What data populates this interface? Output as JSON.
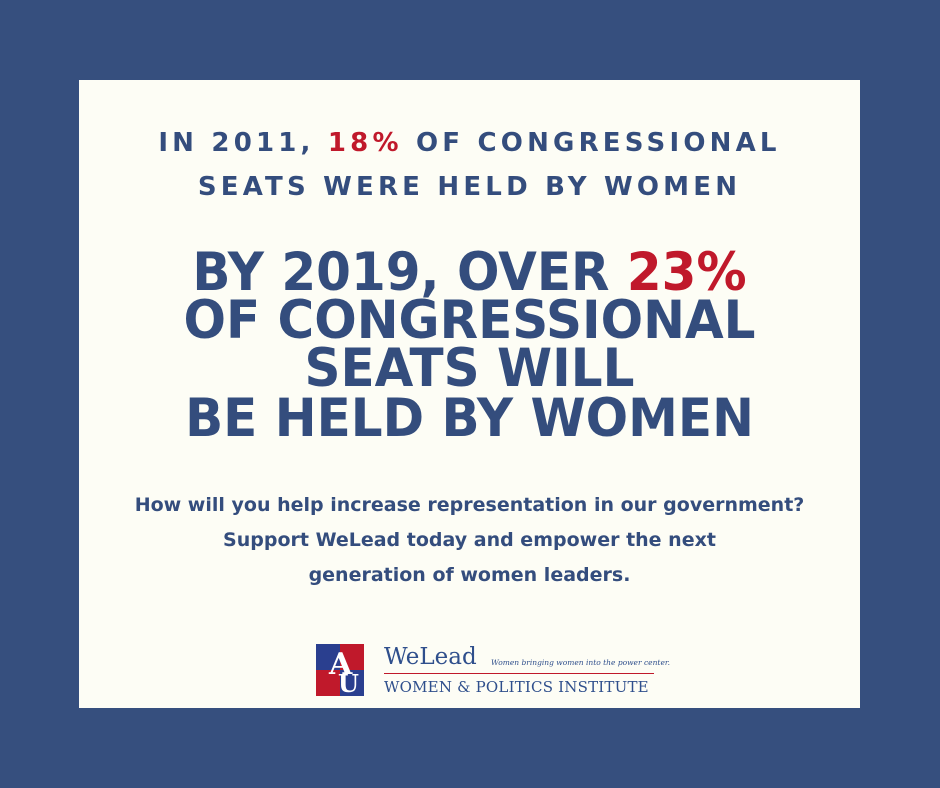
{
  "headline": {
    "line1_prefix": "IN 2011, ",
    "line1_highlight": "18%",
    "line1_suffix": " OF CONGRESSIONAL",
    "line2": "SEATS WERE HELD BY WOMEN"
  },
  "main_statement": {
    "line1_prefix": "BY 2019, OVER ",
    "line1_highlight": "23%",
    "line2": "OF  CONGRESSIONAL",
    "line3": "SEATS WILL",
    "line4": "BE HELD BY WOMEN"
  },
  "call_to_action": {
    "line1": "How will you help increase representation in our government?",
    "line2": "Support WeLead today and empower the next",
    "line3": "generation of women leaders."
  },
  "logo": {
    "name": "WeLead",
    "tagline": "Women bringing women into the power center.",
    "institute": "WOMEN & POLITICS INSTITUTE",
    "mark_letters": "AU"
  },
  "colors": {
    "background": "#364f7e",
    "card": "#fdfdf5",
    "text": "#344d7d",
    "accent_red": "#c0192b"
  }
}
